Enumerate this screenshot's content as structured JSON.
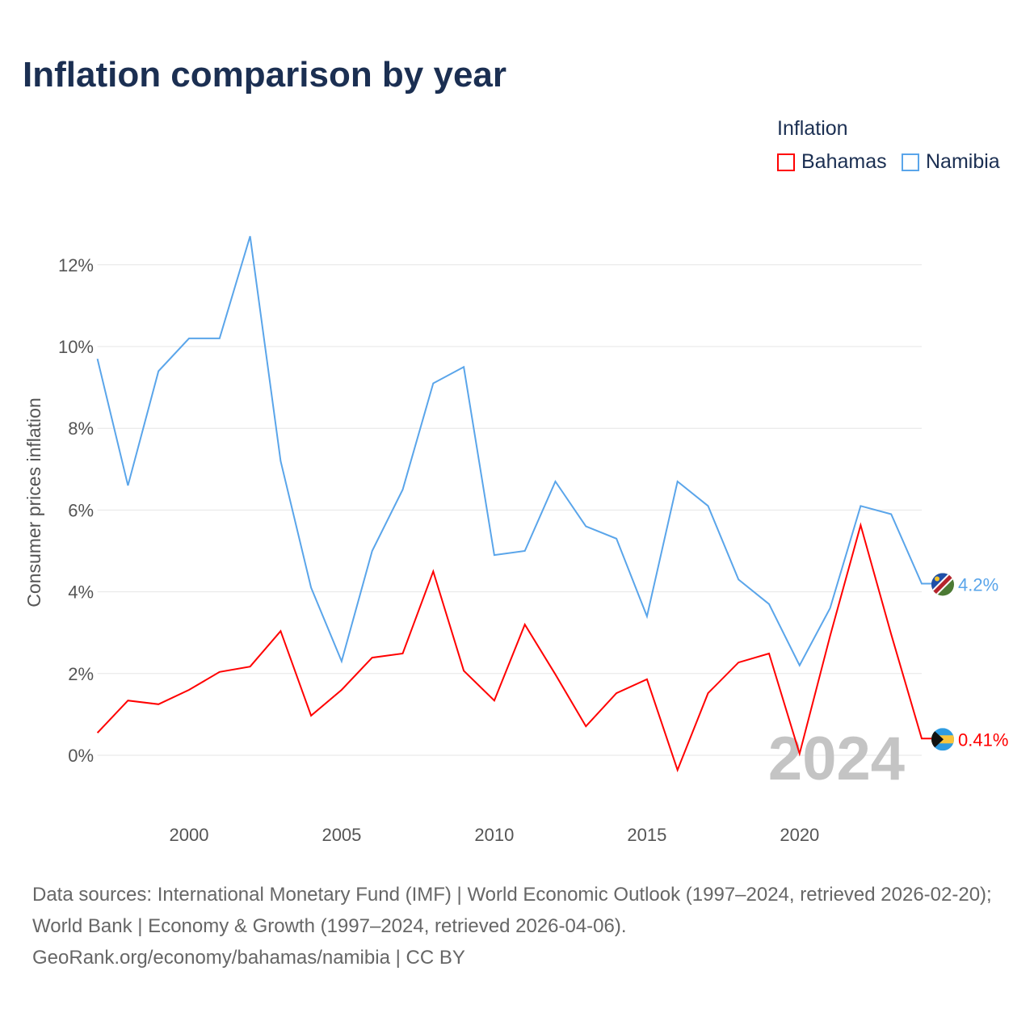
{
  "title": "Inflation comparison by year",
  "legend": {
    "title": "Inflation",
    "items": [
      {
        "name": "Bahamas",
        "color": "#ff0000"
      },
      {
        "name": "Namibia",
        "color": "#5aa5ea"
      }
    ]
  },
  "footer": {
    "line1": "Data sources: International Monetary Fund (IMF) | World Economic Outlook (1997–2024, retrieved 2026-02-20); World Bank | Economy & Growth (1997–2024, retrieved 2026-04-06).",
    "line2": "GeoRank.org/economy/bahamas/namibia | CC BY"
  },
  "chart_data": {
    "type": "line",
    "title": "Inflation comparison by year",
    "xlabel": "",
    "ylabel": "Consumer prices inflation",
    "xlim": [
      1997,
      2024
    ],
    "ylim": [
      -1.2,
      13
    ],
    "x_ticks": [
      2000,
      2005,
      2010,
      2015,
      2020
    ],
    "y_ticks": [
      0,
      2,
      4,
      6,
      8,
      10,
      12
    ],
    "y_tick_labels": [
      "0%",
      "2%",
      "4%",
      "6%",
      "8%",
      "10%",
      "12%"
    ],
    "grid": true,
    "watermark": "2024",
    "x": [
      1997,
      1998,
      1999,
      2000,
      2001,
      2002,
      2003,
      2004,
      2005,
      2006,
      2007,
      2008,
      2009,
      2010,
      2011,
      2012,
      2013,
      2014,
      2015,
      2016,
      2017,
      2018,
      2019,
      2020,
      2021,
      2022,
      2023,
      2024
    ],
    "series": [
      {
        "name": "Bahamas",
        "color": "#ff0000",
        "end_label": "0.41%",
        "values": [
          0.55,
          1.34,
          1.25,
          1.6,
          2.04,
          2.17,
          3.04,
          0.97,
          1.6,
          2.39,
          2.49,
          4.5,
          2.07,
          1.34,
          3.2,
          1.98,
          0.71,
          1.52,
          1.86,
          -0.36,
          1.52,
          2.27,
          2.49,
          0.04,
          2.92,
          5.63,
          2.96,
          0.41
        ]
      },
      {
        "name": "Namibia",
        "color": "#5aa5ea",
        "end_label": "4.2%",
        "values": [
          9.7,
          6.6,
          9.4,
          10.2,
          10.2,
          12.7,
          7.2,
          4.1,
          2.3,
          5.0,
          6.5,
          9.1,
          9.5,
          4.9,
          5.0,
          6.7,
          5.6,
          5.3,
          3.4,
          6.7,
          6.1,
          4.3,
          3.7,
          2.2,
          3.6,
          6.1,
          5.9,
          4.2
        ]
      }
    ]
  }
}
